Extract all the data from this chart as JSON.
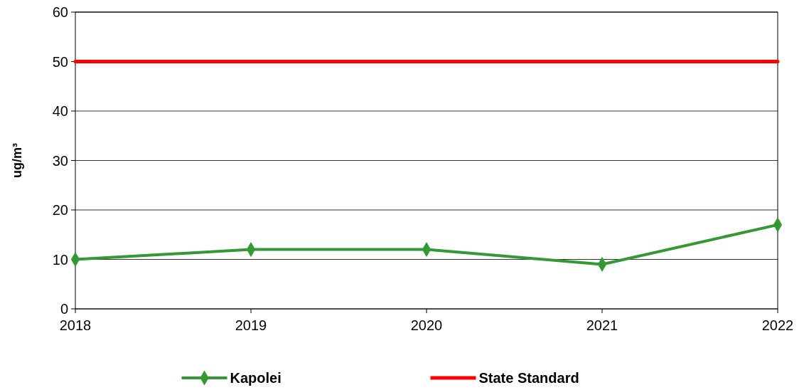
{
  "chart_data": {
    "type": "line",
    "ylabel": "ug/m³",
    "categories": [
      "2018",
      "2019",
      "2020",
      "2021",
      "2022"
    ],
    "series": [
      {
        "name": "Kapolei",
        "color": "#339933",
        "values": [
          10,
          12,
          12,
          9,
          17
        ],
        "marker": "diamond"
      },
      {
        "name": "State Standard",
        "color": "#ff0000",
        "values": [
          50,
          50,
          50,
          50,
          50
        ],
        "marker": "none"
      }
    ],
    "ylim": [
      0,
      60
    ],
    "yticks": [
      0,
      10,
      20,
      30,
      40,
      50,
      60
    ],
    "grid": "y",
    "legend": "bottom"
  }
}
